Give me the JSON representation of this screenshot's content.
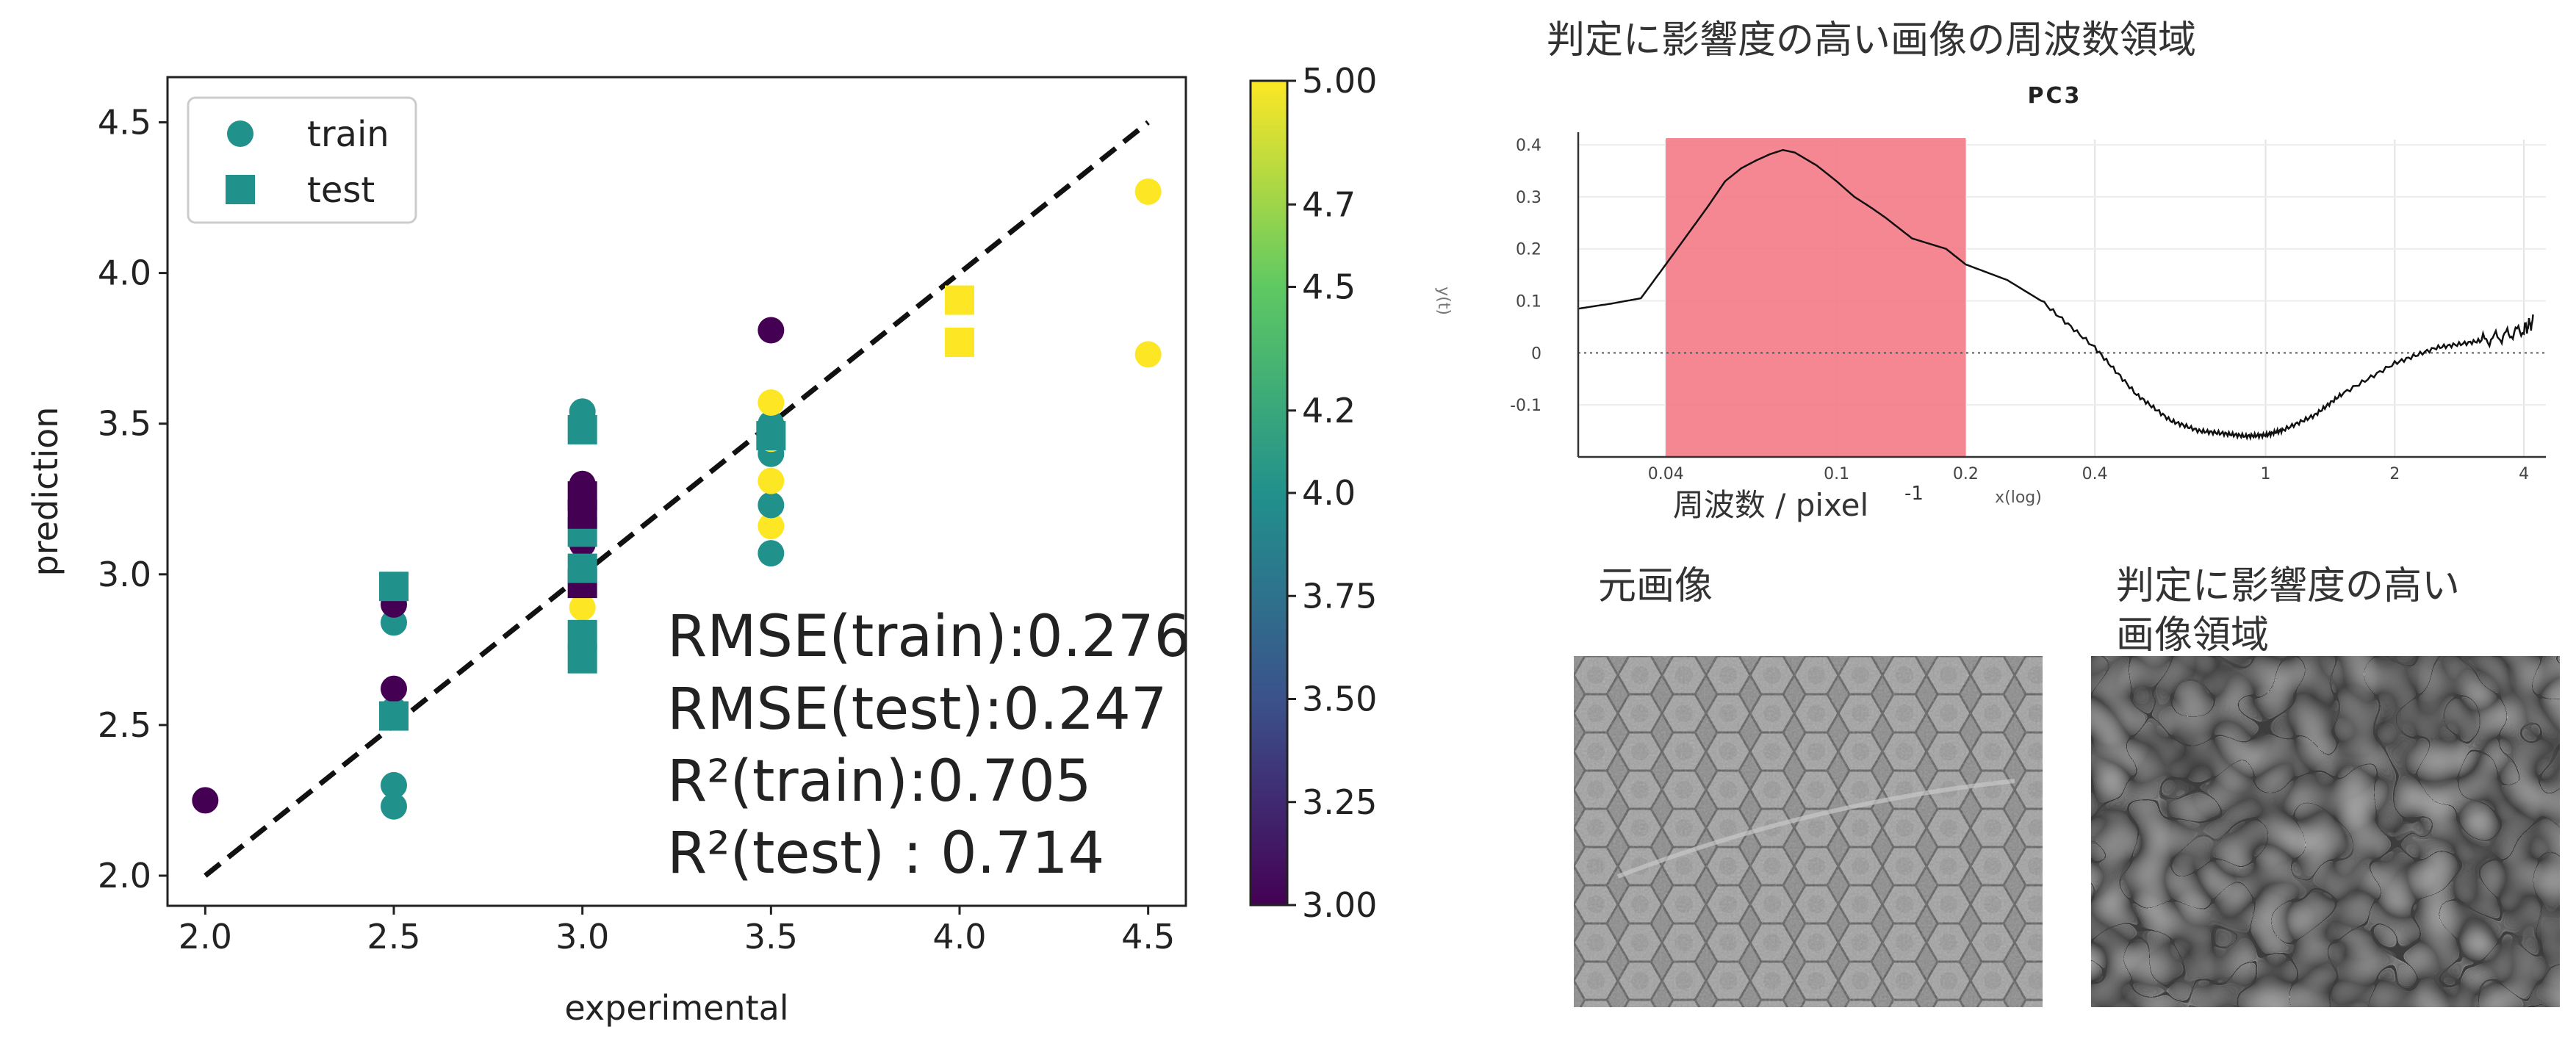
{
  "scatter": {
    "chart_data": {
      "type": "scatter",
      "xlabel": "experimental",
      "ylabel": "prediction",
      "xlim": [
        1.9,
        4.6
      ],
      "ylim": [
        1.9,
        4.65
      ],
      "xticks": [
        "2.0",
        "2.5",
        "3.0",
        "3.5",
        "4.0",
        "4.5"
      ],
      "yticks": [
        "2.0",
        "2.5",
        "3.0",
        "3.5",
        "4.0",
        "4.5"
      ],
      "legend": {
        "placement": "top-left",
        "entries": [
          "train",
          "test"
        ]
      },
      "reference_line": {
        "style": "dashed",
        "from": [
          2.0,
          2.0
        ],
        "to": [
          4.5,
          4.5
        ]
      },
      "colorbar": {
        "colormap": "viridis",
        "range": [
          3.0,
          5.0
        ],
        "ticks": [
          "3.00",
          "3.25",
          "3.50",
          "3.75",
          "4.0",
          "4.2",
          "4.5",
          "4.7",
          "5.00"
        ]
      },
      "annotations": [
        "RMSE(train):0.276",
        "RMSE(test):0.247",
        "R²(train):0.705",
        "R²(test) : 0.714"
      ],
      "series": [
        {
          "name": "train",
          "marker": "circle",
          "points": [
            {
              "x": 2.0,
              "y": 2.25,
              "c": 3.0
            },
            {
              "x": 2.5,
              "y": 2.23,
              "c": 4.0
            },
            {
              "x": 2.5,
              "y": 2.3,
              "c": 4.0
            },
            {
              "x": 2.5,
              "y": 2.55,
              "c": 4.0
            },
            {
              "x": 2.5,
              "y": 2.62,
              "c": 3.0
            },
            {
              "x": 2.5,
              "y": 2.84,
              "c": 4.0
            },
            {
              "x": 2.5,
              "y": 2.9,
              "c": 3.0
            },
            {
              "x": 3.0,
              "y": 2.89,
              "c": 5.0
            },
            {
              "x": 3.0,
              "y": 2.95,
              "c": 5.0
            },
            {
              "x": 3.0,
              "y": 3.02,
              "c": 3.0
            },
            {
              "x": 3.0,
              "y": 3.1,
              "c": 3.0
            },
            {
              "x": 3.0,
              "y": 3.15,
              "c": 4.0
            },
            {
              "x": 3.0,
              "y": 3.3,
              "c": 3.0
            },
            {
              "x": 3.0,
              "y": 3.5,
              "c": 4.0
            },
            {
              "x": 3.0,
              "y": 3.54,
              "c": 4.0
            },
            {
              "x": 3.5,
              "y": 3.07,
              "c": 4.0
            },
            {
              "x": 3.5,
              "y": 3.16,
              "c": 5.0
            },
            {
              "x": 3.5,
              "y": 3.23,
              "c": 4.0
            },
            {
              "x": 3.5,
              "y": 3.31,
              "c": 5.0
            },
            {
              "x": 3.5,
              "y": 3.4,
              "c": 4.0
            },
            {
              "x": 3.5,
              "y": 3.45,
              "c": 5.0
            },
            {
              "x": 3.5,
              "y": 3.5,
              "c": 4.0
            },
            {
              "x": 3.5,
              "y": 3.57,
              "c": 5.0
            },
            {
              "x": 3.5,
              "y": 3.81,
              "c": 3.0
            },
            {
              "x": 4.5,
              "y": 3.73,
              "c": 5.0
            },
            {
              "x": 4.5,
              "y": 4.27,
              "c": 5.0
            }
          ]
        },
        {
          "name": "test",
          "marker": "square",
          "points": [
            {
              "x": 2.5,
              "y": 2.53,
              "c": 4.0
            },
            {
              "x": 2.5,
              "y": 2.96,
              "c": 4.0
            },
            {
              "x": 3.0,
              "y": 2.72,
              "c": 4.0
            },
            {
              "x": 3.0,
              "y": 2.8,
              "c": 4.0
            },
            {
              "x": 3.0,
              "y": 2.97,
              "c": 3.0
            },
            {
              "x": 3.0,
              "y": 3.02,
              "c": 4.0
            },
            {
              "x": 3.0,
              "y": 3.14,
              "c": 4.0
            },
            {
              "x": 3.0,
              "y": 3.2,
              "c": 3.0
            },
            {
              "x": 3.0,
              "y": 3.26,
              "c": 3.0
            },
            {
              "x": 3.0,
              "y": 3.48,
              "c": 4.0
            },
            {
              "x": 3.5,
              "y": 3.46,
              "c": 4.0
            },
            {
              "x": 4.0,
              "y": 3.77,
              "c": 5.0
            },
            {
              "x": 4.0,
              "y": 3.91,
              "c": 5.0
            }
          ]
        }
      ]
    }
  },
  "spectrum": {
    "heading": "判定に影響度の高い画像の周波数領域",
    "chart_data": {
      "type": "line",
      "title": "PC3",
      "xlabel": "周波数 / pixel",
      "xlabel_sup": "-1",
      "xlabel_small": "x(log)",
      "ylabel": "y(t)",
      "x_scale": "log",
      "xlim": [
        0.025,
        4.5
      ],
      "ylim": [
        -0.2,
        0.41
      ],
      "xticks": [
        "0.04",
        "0.1",
        "0.2",
        "0.4",
        "1",
        "2",
        "4"
      ],
      "yticks": [
        "0.4",
        "0.3",
        "0.2",
        "0.1",
        "0",
        "-0.1"
      ],
      "highlight_region": {
        "x0": 0.04,
        "x1": 0.2,
        "color": "#f47a86"
      },
      "x": [
        0.025,
        0.03,
        0.035,
        0.04,
        0.05,
        0.055,
        0.06,
        0.065,
        0.07,
        0.075,
        0.08,
        0.09,
        0.1,
        0.11,
        0.12,
        0.13,
        0.15,
        0.18,
        0.2,
        0.25,
        0.3,
        0.4,
        0.5,
        0.6,
        0.7,
        0.8,
        0.9,
        1.0,
        1.1,
        1.3,
        1.5,
        2.0,
        2.5,
        3.0,
        3.5,
        4.0,
        4.2
      ],
      "y": [
        0.085,
        0.095,
        0.105,
        0.17,
        0.28,
        0.33,
        0.355,
        0.37,
        0.382,
        0.39,
        0.385,
        0.36,
        0.33,
        0.3,
        0.28,
        0.26,
        0.22,
        0.2,
        0.17,
        0.14,
        0.1,
        0.01,
        -0.08,
        -0.13,
        -0.15,
        -0.155,
        -0.16,
        -0.158,
        -0.148,
        -0.12,
        -0.08,
        -0.02,
        0.01,
        0.02,
        0.03,
        0.045,
        0.06
      ]
    }
  },
  "images": {
    "original_label": "元画像",
    "highlight_label_line1": "判定に影響度の高い",
    "highlight_label_line2": "画像領域"
  }
}
